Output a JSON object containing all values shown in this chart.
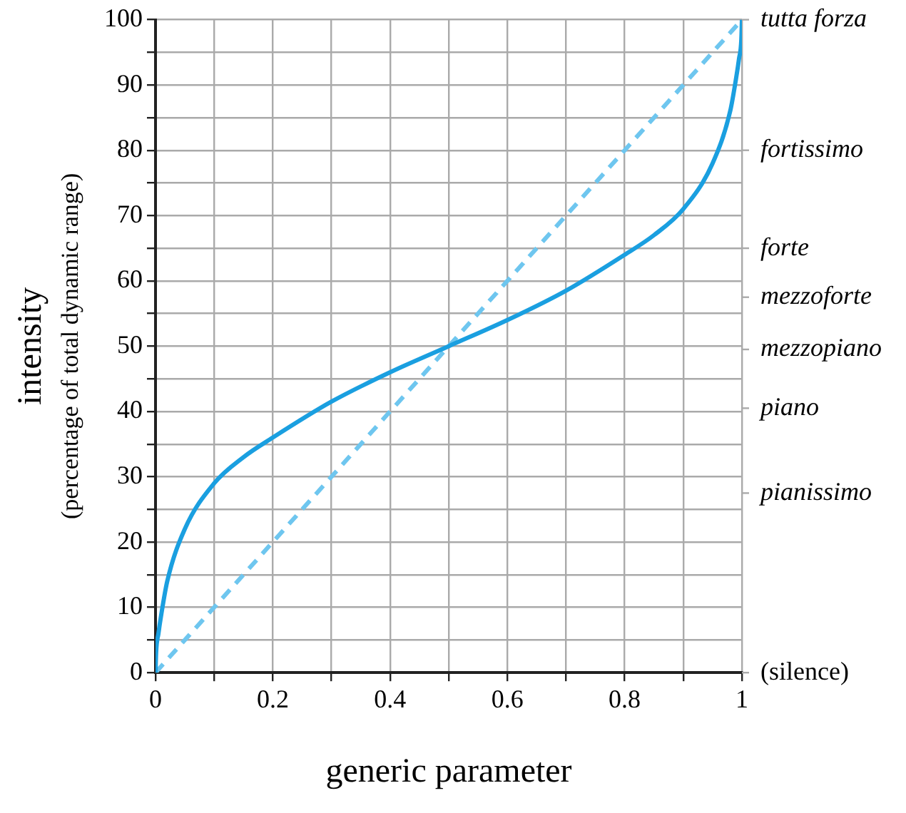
{
  "chart_data": {
    "type": "line",
    "xlabel": "generic parameter",
    "ylabel": "intensity\n(percentage of total dynamic range)",
    "xlim": [
      0,
      1
    ],
    "ylim": [
      0,
      100
    ],
    "xticks": [
      0,
      {
        "value": 0.1,
        "label": null
      },
      0.2,
      {
        "value": 0.3,
        "label": null
      },
      0.4,
      {
        "value": 0.5,
        "label": null
      },
      0.6,
      {
        "value": 0.7,
        "label": null
      },
      0.8,
      {
        "value": 0.9,
        "label": null
      },
      1
    ],
    "yticks": [
      0,
      {
        "value": 5,
        "label": null
      },
      10,
      {
        "value": 15,
        "label": null
      },
      20,
      {
        "value": 25,
        "label": null
      },
      30,
      {
        "value": 35,
        "label": null
      },
      40,
      {
        "value": 45,
        "label": null
      },
      50,
      {
        "value": 55,
        "label": null
      },
      60,
      {
        "value": 65,
        "label": null
      },
      70,
      {
        "value": 75,
        "label": null
      },
      80,
      {
        "value": 85,
        "label": null
      },
      90,
      {
        "value": 95,
        "label": null
      },
      100
    ],
    "ref_lines": [
      {
        "axis": "y",
        "value": 0,
        "label": "(silence)"
      },
      {
        "axis": "y",
        "value": 27.5,
        "label": "pianissimo"
      },
      {
        "axis": "y",
        "value": 40.5,
        "label": "piano"
      },
      {
        "axis": "y",
        "value": 49.5,
        "label": "mezzopiano"
      },
      {
        "axis": "y",
        "value": 57.5,
        "label": "mezzoforte"
      },
      {
        "axis": "y",
        "value": 65,
        "label": "forte"
      },
      {
        "axis": "y",
        "value": 80,
        "label": "fortissimo"
      },
      {
        "axis": "y",
        "value": 100,
        "label": "tutta forza"
      }
    ],
    "grid": true,
    "legend": false,
    "marker": "none",
    "series": [
      {
        "color": "#1a9fe0",
        "line_style": "solid",
        "x": [
          0,
          0.001,
          0.005,
          0.01,
          0.02,
          0.05,
          0.1,
          0.15,
          0.2,
          0.3,
          0.4,
          0.5,
          0.6,
          0.7,
          0.8,
          0.85,
          0.9,
          0.95,
          0.98,
          0.99,
          0.995,
          0.999,
          1
        ],
        "values": [
          0,
          3,
          6,
          9,
          14,
          22,
          29,
          33,
          36,
          41.5,
          46,
          50,
          54,
          58.5,
          64,
          67,
          71,
          78,
          86,
          91,
          94,
          97,
          100
        ]
      },
      {
        "color": "#6ec6ef",
        "line_style": "dashed",
        "x": [
          0,
          1
        ],
        "values": [
          0,
          100
        ]
      }
    ]
  }
}
